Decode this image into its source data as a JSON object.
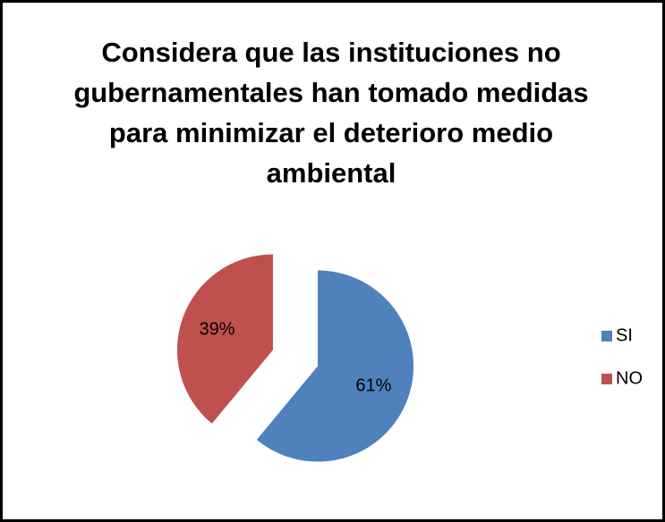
{
  "chart_data": {
    "type": "pie",
    "title": "Considera  que las instituciones no gubernamentales han tomado medidas para minimizar el deterioro medio ambiental",
    "categories": [
      "SI",
      "NO"
    ],
    "values": [
      61,
      39
    ],
    "value_labels": [
      "61%",
      "39%"
    ],
    "colors": [
      "#4f81bd",
      "#c0504d"
    ],
    "legend": "right"
  }
}
